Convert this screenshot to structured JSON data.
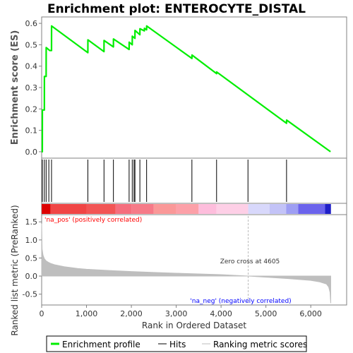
{
  "colors": {
    "es_line": "#00ee00",
    "hits": "#000000",
    "metric_fill": "#bebebe",
    "pos_text": "#ff0000",
    "neg_text": "#0000ff",
    "zero_cross_line": "#bbbbbb"
  },
  "chart_data": {
    "type": "line",
    "title": "Enrichment plot: ENTEROCYTE_DISTAL",
    "xlabel": "Rank in Ordered Dataset",
    "es_ylabel": "Enrichment score (ES)",
    "metric_ylabel": "Ranked list metric (PreRanked)",
    "xlim": [
      0,
      6800
    ],
    "es_ylim": [
      -0.03,
      0.63
    ],
    "metric_ylim": [
      -0.8,
      1.7
    ],
    "x_ticks": [
      0,
      1000,
      2000,
      3000,
      4000,
      5000,
      6000
    ],
    "x_tick_labels": [
      "0",
      "1,000",
      "2,000",
      "3,000",
      "4,000",
      "5,000",
      "6,000"
    ],
    "es_ticks": [
      0.0,
      0.1,
      0.2,
      0.3,
      0.4,
      0.5,
      0.6
    ],
    "es_tick_labels": [
      "0.0",
      "0.1",
      "0.2",
      "0.3",
      "0.4",
      "0.5",
      "0.6"
    ],
    "metric_ticks": [
      -0.5,
      0.0,
      0.5,
      1.0,
      1.5
    ],
    "metric_tick_labels": [
      "-0.5",
      "0.0",
      "0.5",
      "1.0",
      "1.5"
    ],
    "series": [
      {
        "name": "Enrichment profile",
        "x": [
          0,
          15,
          16,
          60,
          61,
          100,
          101,
          180,
          181,
          220,
          221,
          1030,
          1031,
          1390,
          1391,
          1600,
          1601,
          1950,
          1951,
          2020,
          2021,
          2080,
          2081,
          2190,
          2191,
          2290,
          2291,
          2340,
          2341,
          3350,
          3351,
          3900,
          3901,
          5460,
          5461,
          6440
        ],
        "y": [
          0.0,
          0.0,
          0.195,
          0.195,
          0.352,
          0.352,
          0.487,
          0.473,
          0.473,
          0.473,
          0.588,
          0.463,
          0.523,
          0.468,
          0.52,
          0.49,
          0.527,
          0.478,
          0.512,
          0.5,
          0.54,
          0.53,
          0.567,
          0.547,
          0.575,
          0.565,
          0.577,
          0.57,
          0.588,
          0.436,
          0.452,
          0.365,
          0.373,
          0.133,
          0.148,
          0.0
        ]
      }
    ],
    "hits": [
      15,
      60,
      100,
      160,
      220,
      1030,
      1390,
      1600,
      1950,
      2020,
      2060,
      2080,
      2190,
      2340,
      3350,
      3900,
      4600,
      5460
    ],
    "metric_curve": {
      "x": [
        0,
        10,
        30,
        60,
        100,
        150,
        200,
        300,
        500,
        800,
        1000,
        1500,
        2000,
        2500,
        3000,
        3500,
        4000,
        4605,
        5000,
        5500,
        6000,
        6200,
        6350,
        6400,
        6430,
        6445
      ],
      "y": [
        1.45,
        0.75,
        0.58,
        0.48,
        0.42,
        0.38,
        0.35,
        0.31,
        0.26,
        0.21,
        0.19,
        0.155,
        0.125,
        0.1,
        0.08,
        0.06,
        0.04,
        0.0,
        -0.03,
        -0.07,
        -0.12,
        -0.16,
        -0.22,
        -0.3,
        -0.45,
        -0.75
      ]
    },
    "zero_cross_x": 4605,
    "heatmap_blocks": [
      {
        "x0": 0,
        "x1": 200,
        "color": "#dd0000"
      },
      {
        "x0": 200,
        "x1": 1000,
        "color": "#f04545"
      },
      {
        "x0": 1000,
        "x1": 1650,
        "color": "#f25555"
      },
      {
        "x0": 1650,
        "x1": 2000,
        "color": "#f56e7d"
      },
      {
        "x0": 2000,
        "x1": 2500,
        "color": "#f67a88"
      },
      {
        "x0": 2500,
        "x1": 3000,
        "color": "#fa9898"
      },
      {
        "x0": 3000,
        "x1": 3500,
        "color": "#fca0a8"
      },
      {
        "x0": 3500,
        "x1": 3900,
        "color": "#fdbddc"
      },
      {
        "x0": 3900,
        "x1": 4605,
        "color": "#fdcfe6"
      },
      {
        "x0": 4605,
        "x1": 5080,
        "color": "#d8d8fb"
      },
      {
        "x0": 5080,
        "x1": 5450,
        "color": "#c3c3f7"
      },
      {
        "x0": 5450,
        "x1": 5720,
        "color": "#9e9ef3"
      },
      {
        "x0": 5720,
        "x1": 6320,
        "color": "#6b63ec"
      },
      {
        "x0": 6320,
        "x1": 6450,
        "color": "#2020c8"
      }
    ],
    "annotations": {
      "pos": "'na_pos' (positively correlated)",
      "neg": "'na_neg' (negatively correlated)",
      "zero_cross": "Zero cross at 4605"
    },
    "legend": {
      "placement": "bottom",
      "items": [
        "Enrichment profile",
        "Hits",
        "Ranking metric scores"
      ]
    }
  }
}
